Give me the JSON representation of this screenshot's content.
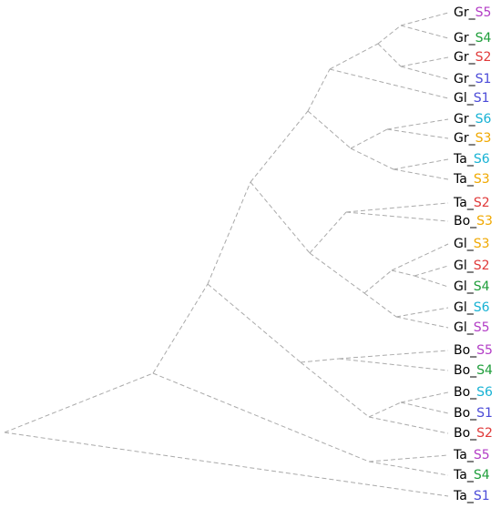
{
  "leaves": [
    {
      "prefix": "Gr_",
      "suffix": "S5",
      "color": "#b33dc6"
    },
    {
      "prefix": "Gr_",
      "suffix": "S4",
      "color": "#1e9e3a"
    },
    {
      "prefix": "Gr_",
      "suffix": "S2",
      "color": "#e03a3a"
    },
    {
      "prefix": "Gr_",
      "suffix": "S1",
      "color": "#4b4bd8"
    },
    {
      "prefix": "Gl_",
      "suffix": "S1",
      "color": "#4b4bd8"
    },
    {
      "prefix": "Gr_",
      "suffix": "S6",
      "color": "#17b2d4"
    },
    {
      "prefix": "Gr_",
      "suffix": "S3",
      "color": "#f0a800"
    },
    {
      "prefix": "Ta_",
      "suffix": "S6",
      "color": "#17b2d4"
    },
    {
      "prefix": "Ta_",
      "suffix": "S3",
      "color": "#f0a800"
    },
    {
      "prefix": "Ta_",
      "suffix": "S2",
      "color": "#e03a3a"
    },
    {
      "prefix": "Bo_",
      "suffix": "S3",
      "color": "#f0a800"
    },
    {
      "prefix": "Gl_",
      "suffix": "S3",
      "color": "#f0a800"
    },
    {
      "prefix": "Gl_",
      "suffix": "S2",
      "color": "#e03a3a"
    },
    {
      "prefix": "Gl_",
      "suffix": "S4",
      "color": "#1e9e3a"
    },
    {
      "prefix": "Gl_",
      "suffix": "S6",
      "color": "#17b2d4"
    },
    {
      "prefix": "Gl_",
      "suffix": "S5",
      "color": "#b33dc6"
    },
    {
      "prefix": "Bo_",
      "suffix": "S5",
      "color": "#b33dc6"
    },
    {
      "prefix": "Bo_",
      "suffix": "S4",
      "color": "#1e9e3a"
    },
    {
      "prefix": "Bo_",
      "suffix": "S6",
      "color": "#17b2d4"
    },
    {
      "prefix": "Bo_",
      "suffix": "S1",
      "color": "#4b4bd8"
    },
    {
      "prefix": "Bo_",
      "suffix": "S2",
      "color": "#e03a3a"
    },
    {
      "prefix": "Ta_",
      "suffix": "S5",
      "color": "#b33dc6"
    },
    {
      "prefix": "Ta_",
      "suffix": "S4",
      "color": "#1e9e3a"
    },
    {
      "prefix": "Ta_",
      "suffix": "S1",
      "color": "#4b4bd8"
    }
  ]
}
